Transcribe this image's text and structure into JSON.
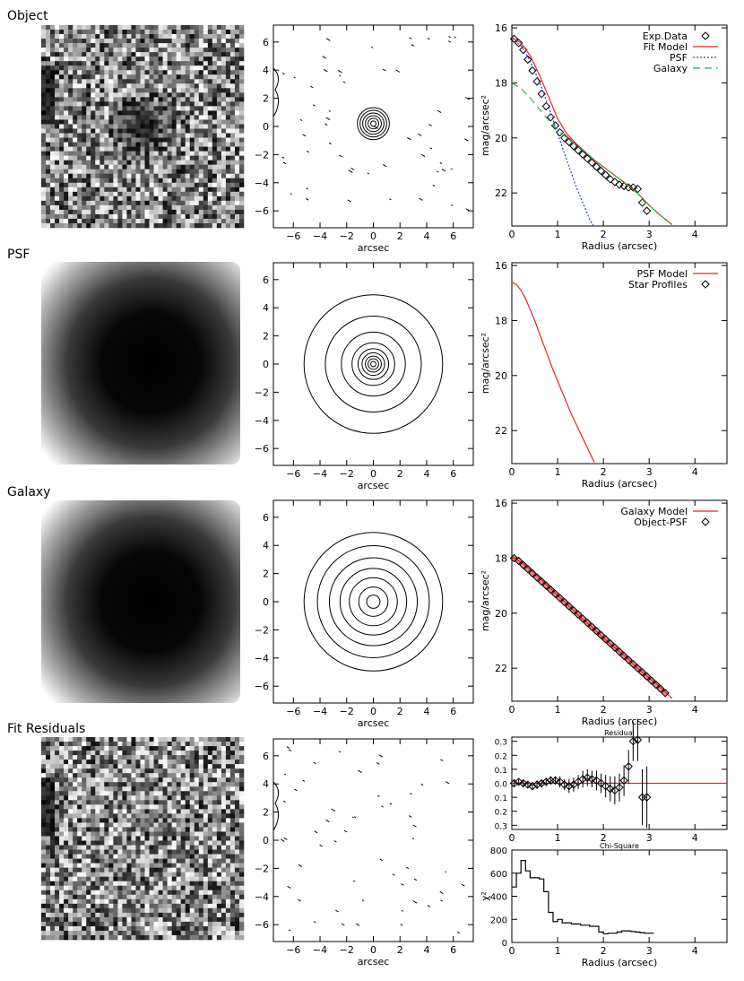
{
  "row_titles": [
    "Object",
    "PSF",
    "Galaxy",
    "Fit Residuals"
  ],
  "colors": {
    "model": "#e8231e",
    "psf_dash": "#1f3de0",
    "galaxy_dash": "#19b84a",
    "axis": "#000000"
  },
  "chart_data": [
    {
      "id": "object-image",
      "type": "image",
      "title": "Object",
      "content": "noisy grayscale cutout, dark compact source at center"
    },
    {
      "id": "object-contours",
      "type": "contour",
      "xlabel": "arcsec",
      "ylabel": "",
      "xlim": [
        -7.5,
        7.5
      ],
      "ylim": [
        -7.2,
        7.2
      ],
      "xticks": [
        -6,
        -4,
        -2,
        0,
        2,
        4,
        6
      ],
      "yticks": [
        -6,
        -4,
        -2,
        0,
        2,
        4,
        6
      ],
      "center": [
        0,
        0.2
      ],
      "contour_radii": [
        0.2,
        0.4,
        0.6,
        0.8,
        1.0,
        1.2
      ]
    },
    {
      "id": "object-profile",
      "type": "line",
      "xlabel": "Radius (arcsec)",
      "ylabel": "mag/arcsec²",
      "xlim": [
        0,
        4.7
      ],
      "ylim": [
        23.2,
        15.9
      ],
      "xticks": [
        0,
        1,
        2,
        3,
        4
      ],
      "yticks": [
        16,
        18,
        20,
        22
      ],
      "legend": [
        "Exp.Data",
        "Fit Model",
        "PSF",
        "Galaxy"
      ],
      "series": [
        {
          "name": "Exp.Data",
          "style": "diamond",
          "x": [
            0.05,
            0.15,
            0.25,
            0.35,
            0.45,
            0.55,
            0.65,
            0.75,
            0.85,
            0.95,
            1.05,
            1.15,
            1.25,
            1.35,
            1.45,
            1.55,
            1.65,
            1.75,
            1.85,
            1.95,
            2.05,
            2.15,
            2.25,
            2.35,
            2.45,
            2.55,
            2.65,
            2.75,
            2.85,
            2.95
          ],
          "y": [
            16.4,
            16.55,
            16.8,
            17.15,
            17.55,
            17.95,
            18.4,
            18.85,
            19.25,
            19.55,
            19.8,
            20.0,
            20.15,
            20.3,
            20.45,
            20.6,
            20.75,
            20.9,
            21.05,
            21.2,
            21.35,
            21.5,
            21.6,
            21.7,
            21.75,
            21.8,
            21.8,
            21.85,
            22.35,
            22.65
          ]
        },
        {
          "name": "Fit Model",
          "style": "solid",
          "x": [
            0,
            0.2,
            0.4,
            0.6,
            0.8,
            1.0,
            1.2,
            1.4,
            1.6,
            1.8,
            2.0,
            2.2,
            2.4,
            2.6,
            2.8,
            3.0,
            3.2,
            3.5
          ],
          "y": [
            16.35,
            16.55,
            17.0,
            17.7,
            18.5,
            19.3,
            19.85,
            20.2,
            20.5,
            20.8,
            21.05,
            21.3,
            21.55,
            21.8,
            22.1,
            22.45,
            22.75,
            23.15
          ]
        },
        {
          "name": "PSF",
          "style": "dotted",
          "x": [
            0,
            0.2,
            0.4,
            0.6,
            0.8,
            1.0,
            1.2,
            1.4,
            1.6,
            1.7,
            1.8
          ],
          "y": [
            16.4,
            16.65,
            17.2,
            17.95,
            18.85,
            19.85,
            20.8,
            21.75,
            22.55,
            22.95,
            23.25
          ]
        },
        {
          "name": "Galaxy",
          "style": "dashed",
          "x": [
            0,
            0.2,
            0.4,
            0.6,
            0.8,
            1.0,
            1.2,
            1.4,
            1.6,
            1.8,
            2.0,
            2.2,
            2.4,
            2.6,
            2.8,
            3.0,
            3.2,
            3.5
          ],
          "y": [
            18.0,
            18.2,
            18.55,
            18.95,
            19.35,
            19.7,
            20.0,
            20.25,
            20.5,
            20.8,
            21.05,
            21.3,
            21.55,
            21.8,
            22.1,
            22.45,
            22.75,
            23.15
          ]
        }
      ]
    },
    {
      "id": "psf-image",
      "type": "image",
      "title": "PSF",
      "content": "smooth dark radial profile"
    },
    {
      "id": "psf-contours",
      "type": "contour",
      "xlabel": "arcsec",
      "ylabel": "",
      "xlim": [
        -7.5,
        7.5
      ],
      "ylim": [
        -7.2,
        7.2
      ],
      "xticks": [
        -6,
        -4,
        -2,
        0,
        2,
        4,
        6
      ],
      "yticks": [
        -6,
        -4,
        -2,
        0,
        2,
        4,
        6
      ],
      "center": [
        0,
        0
      ],
      "contour_radii": [
        0.2,
        0.4,
        0.6,
        0.85,
        1.15,
        1.6,
        2.4,
        3.6,
        5.2
      ]
    },
    {
      "id": "psf-profile",
      "type": "line",
      "xlabel": "Radius (arcsec)",
      "ylabel": "mag/arcsec²",
      "xlim": [
        0,
        4.7
      ],
      "ylim": [
        23.2,
        15.9
      ],
      "xticks": [
        0,
        1,
        2,
        3,
        4
      ],
      "yticks": [
        16,
        18,
        20,
        22
      ],
      "legend": [
        "PSF Model",
        "Star Profiles"
      ],
      "series": [
        {
          "name": "PSF Model",
          "style": "solid",
          "x": [
            0,
            0.1,
            0.2,
            0.3,
            0.4,
            0.5,
            0.6,
            0.7,
            0.8,
            0.9,
            1.0,
            1.1,
            1.2,
            1.3,
            1.4,
            1.5,
            1.6,
            1.7,
            1.8
          ],
          "y": [
            16.6,
            16.7,
            16.9,
            17.2,
            17.6,
            18.0,
            18.45,
            18.9,
            19.35,
            19.8,
            20.2,
            20.6,
            21.0,
            21.4,
            21.75,
            22.1,
            22.45,
            22.8,
            23.15
          ]
        }
      ]
    },
    {
      "id": "galaxy-image",
      "type": "image",
      "title": "Galaxy",
      "content": "smooth dark extended profile"
    },
    {
      "id": "galaxy-contours",
      "type": "contour",
      "xlabel": "arcsec",
      "ylabel": "",
      "xlim": [
        -7.5,
        7.5
      ],
      "ylim": [
        -7.2,
        7.2
      ],
      "xticks": [
        -6,
        -4,
        -2,
        0,
        2,
        4,
        6
      ],
      "yticks": [
        -6,
        -4,
        -2,
        0,
        2,
        4,
        6
      ],
      "center": [
        0,
        0
      ],
      "contour_radii": [
        0.5,
        1.1,
        1.8,
        2.5,
        3.3,
        4.2,
        5.2
      ]
    },
    {
      "id": "galaxy-profile",
      "type": "line",
      "xlabel": "Radius (arcsec)",
      "ylabel": "mag/arcsec²",
      "xlim": [
        0,
        4.7
      ],
      "ylim": [
        23.2,
        15.9
      ],
      "xticks": [
        0,
        1,
        2,
        3,
        4
      ],
      "yticks": [
        16,
        18,
        20,
        22
      ],
      "legend": [
        "Galaxy Model",
        "Object-PSF"
      ],
      "series": [
        {
          "name": "Galaxy Model",
          "style": "solid",
          "x": [
            0,
            0.25,
            0.5,
            0.75,
            1.0,
            1.25,
            1.5,
            1.75,
            2.0,
            2.25,
            2.5,
            2.75,
            3.0,
            3.25,
            3.5
          ],
          "y": [
            17.95,
            18.2,
            18.55,
            18.95,
            19.35,
            19.75,
            20.15,
            20.5,
            20.9,
            21.25,
            21.6,
            22.0,
            22.35,
            22.7,
            23.1
          ]
        },
        {
          "name": "Object-PSF",
          "style": "diamond",
          "x": [
            0.05,
            0.15,
            0.25,
            0.35,
            0.45,
            0.55,
            0.65,
            0.75,
            0.85,
            0.95,
            1.05,
            1.15,
            1.25,
            1.35,
            1.45,
            1.55,
            1.65,
            1.75,
            1.85,
            1.95,
            2.05,
            2.15,
            2.25,
            2.35,
            2.45,
            2.55,
            2.65,
            2.75,
            2.85,
            2.95,
            3.05,
            3.15,
            3.25,
            3.35
          ],
          "y": [
            18.0,
            18.1,
            18.25,
            18.4,
            18.55,
            18.7,
            18.85,
            19.0,
            19.15,
            19.3,
            19.45,
            19.6,
            19.75,
            19.9,
            20.05,
            20.2,
            20.35,
            20.5,
            20.65,
            20.8,
            20.95,
            21.1,
            21.25,
            21.4,
            21.55,
            21.7,
            21.85,
            22.0,
            22.15,
            22.3,
            22.45,
            22.6,
            22.75,
            22.9
          ]
        }
      ]
    },
    {
      "id": "residual-image",
      "type": "image",
      "title": "Fit Residuals",
      "content": "noisy grayscale residual map"
    },
    {
      "id": "residual-contours",
      "type": "contour",
      "xlabel": "arcsec",
      "ylabel": "",
      "xlim": [
        -7.5,
        7.5
      ],
      "ylim": [
        -7.2,
        7.2
      ],
      "xticks": [
        -6,
        -4,
        -2,
        0,
        2,
        4,
        6
      ],
      "yticks": [
        -6,
        -4,
        -2,
        0,
        2,
        4,
        6
      ],
      "center": [
        0,
        0
      ],
      "contour_radii": []
    },
    {
      "id": "residual-profile",
      "type": "line",
      "title": "Residual",
      "xlabel": "",
      "ylabel": "",
      "xlim": [
        0,
        4.7
      ],
      "ylim": [
        0.33,
        -0.33
      ],
      "xticks": [
        0,
        1,
        2,
        3,
        4
      ],
      "yticks": [
        -0.3,
        -0.2,
        -0.1,
        0.0,
        0.1,
        0.2,
        0.3
      ],
      "series": [
        {
          "name": "residuals",
          "style": "diamond",
          "x": [
            0.05,
            0.15,
            0.25,
            0.35,
            0.45,
            0.55,
            0.65,
            0.75,
            0.85,
            0.95,
            1.05,
            1.15,
            1.25,
            1.35,
            1.45,
            1.55,
            1.65,
            1.75,
            1.85,
            1.95,
            2.05,
            2.15,
            2.25,
            2.35,
            2.45,
            2.55,
            2.65,
            2.75,
            2.85,
            2.95
          ],
          "y": [
            0.0,
            -0.01,
            0.0,
            0.01,
            0.02,
            0.01,
            0.0,
            -0.01,
            -0.02,
            -0.02,
            -0.01,
            0.01,
            0.02,
            0.01,
            -0.01,
            -0.03,
            -0.04,
            -0.03,
            -0.02,
            0.0,
            0.02,
            0.04,
            0.05,
            0.03,
            -0.02,
            -0.12,
            -0.3,
            -0.31,
            0.1,
            0.1
          ],
          "err": [
            0.02,
            0.02,
            0.02,
            0.02,
            0.02,
            0.03,
            0.03,
            0.03,
            0.03,
            0.03,
            0.04,
            0.04,
            0.05,
            0.05,
            0.05,
            0.06,
            0.06,
            0.06,
            0.07,
            0.07,
            0.08,
            0.09,
            0.1,
            0.1,
            0.11,
            0.12,
            0.14,
            0.15,
            0.2,
            0.22
          ]
        },
        {
          "name": "zero line",
          "style": "solid",
          "x": [
            0,
            4.7
          ],
          "y": [
            0,
            0
          ]
        }
      ]
    },
    {
      "id": "chi-square-profile",
      "type": "line",
      "title": "Chi-Square",
      "xlabel": "Radius (arcsec)",
      "ylabel": "χ²",
      "xlim": [
        0,
        4.7
      ],
      "ylim": [
        0,
        800
      ],
      "xticks": [
        0,
        1,
        2,
        3,
        4
      ],
      "yticks": [
        0,
        200,
        400,
        600,
        800
      ],
      "series": [
        {
          "name": "chi-square",
          "style": "step",
          "x": [
            0,
            0.1,
            0.2,
            0.3,
            0.4,
            0.5,
            0.6,
            0.7,
            0.8,
            0.9,
            1.0,
            1.1,
            1.2,
            1.3,
            1.4,
            1.5,
            1.6,
            1.7,
            1.8,
            1.9,
            2.0,
            2.1,
            2.2,
            2.3,
            2.4,
            2.5,
            2.6,
            2.7,
            2.8,
            2.9,
            3.0
          ],
          "y": [
            480,
            600,
            710,
            620,
            560,
            560,
            550,
            440,
            260,
            180,
            200,
            170,
            170,
            160,
            160,
            150,
            150,
            140,
            140,
            90,
            75,
            80,
            80,
            90,
            100,
            100,
            95,
            90,
            85,
            80,
            80
          ]
        }
      ]
    }
  ]
}
